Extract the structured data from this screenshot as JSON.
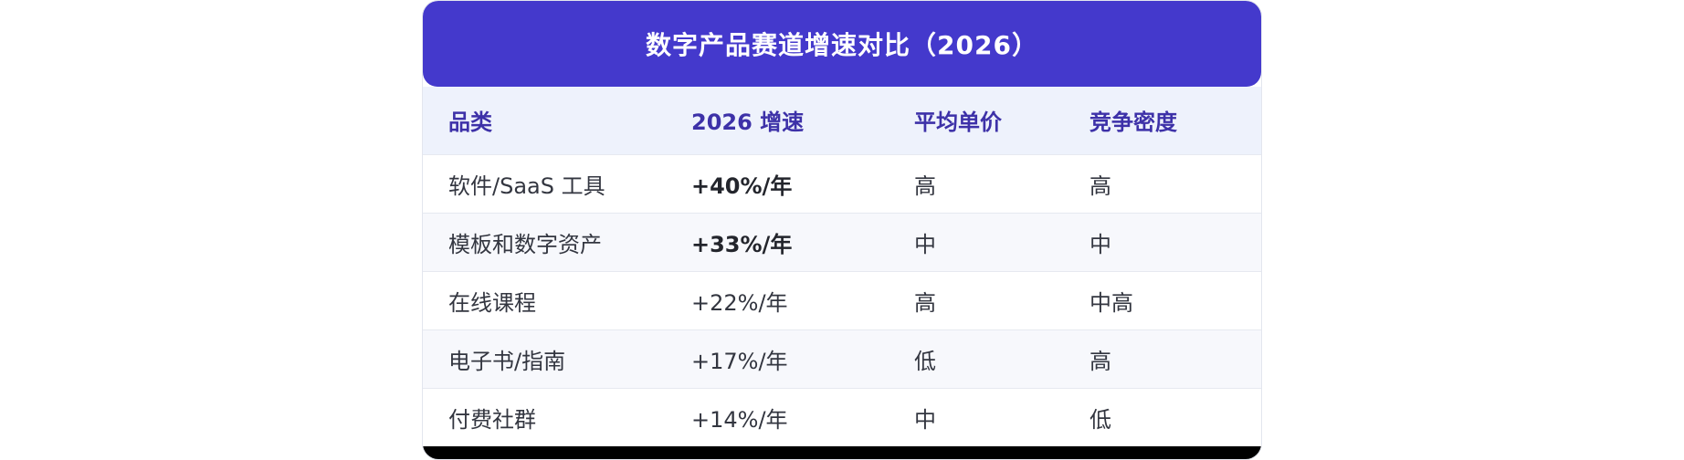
{
  "title": "数字产品赛道增速对比（2026）",
  "table": {
    "headers": [
      "品类",
      "2026 增速",
      "平均单价",
      "竞争密度"
    ],
    "rows": [
      {
        "category": "软件/SaaS 工具",
        "growth": "+40%/年",
        "price": "高",
        "competition": "高",
        "emphasis": true
      },
      {
        "category": "模板和数字资产",
        "growth": "+33%/年",
        "price": "中",
        "competition": "中",
        "emphasis": true
      },
      {
        "category": "在线课程",
        "growth": "+22%/年",
        "price": "高",
        "competition": "中高",
        "emphasis": false
      },
      {
        "category": "电子书/指南",
        "growth": "+17%/年",
        "price": "低",
        "competition": "高",
        "emphasis": false
      },
      {
        "category": "付费社群",
        "growth": "+14%/年",
        "price": "中",
        "competition": "低",
        "emphasis": false
      }
    ]
  }
}
